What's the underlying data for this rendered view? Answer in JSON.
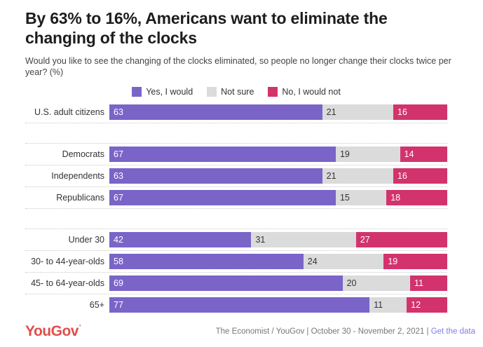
{
  "header": {
    "title": "By 63% to 16%, Americans want to eliminate the changing of the clocks",
    "subtitle": "Would you like to see the changing of the clocks eliminated, so people no longer change their clocks twice per year? (%)"
  },
  "legend": {
    "items": [
      {
        "label": "Yes, I would",
        "color": "#7a64c8"
      },
      {
        "label": "Not sure",
        "color": "#dbdbdb"
      },
      {
        "label": "No, I would not",
        "color": "#d2336c"
      }
    ]
  },
  "chart_data": {
    "type": "bar",
    "orientation": "horizontal",
    "stacked": true,
    "grid": false,
    "legend_position": "top",
    "xlim": [
      0,
      100
    ],
    "categories": [
      "U.S. adult citizens",
      "Democrats",
      "Independents",
      "Republicans",
      "Under 30",
      "30- to 44-year-olds",
      "45- to 64-year-olds",
      "65+"
    ],
    "group_breaks_after": [
      0,
      3
    ],
    "series": [
      {
        "name": "Yes, I would",
        "color": "#7a64c8",
        "label_color": "#ffffff",
        "values": [
          63,
          67,
          63,
          67,
          42,
          58,
          69,
          77
        ]
      },
      {
        "name": "Not sure",
        "color": "#dbdbdb",
        "label_color": "#333333",
        "values": [
          21,
          19,
          21,
          15,
          31,
          24,
          20,
          11
        ]
      },
      {
        "name": "No, I would not",
        "color": "#d2336c",
        "label_color": "#ffffff",
        "values": [
          16,
          14,
          16,
          18,
          27,
          19,
          11,
          12
        ]
      }
    ],
    "title": "By 63% to 16%, Americans want to eliminate the changing of the clocks",
    "xlabel": "",
    "ylabel": ""
  },
  "footer": {
    "logo": "YouGov",
    "logo_mark": "'",
    "source_text": "The Economist / YouGov | October 30 - November 2, 2021 | ",
    "link_label": "Get the data"
  },
  "colors": {
    "title": "#1d1d1d",
    "subtitle": "#444444",
    "row_label": "#333333",
    "dotted_rule": "#c9c9c9",
    "logo_red": "#e14e4b",
    "link_purple": "#837de8",
    "source_gray": "#777777"
  }
}
